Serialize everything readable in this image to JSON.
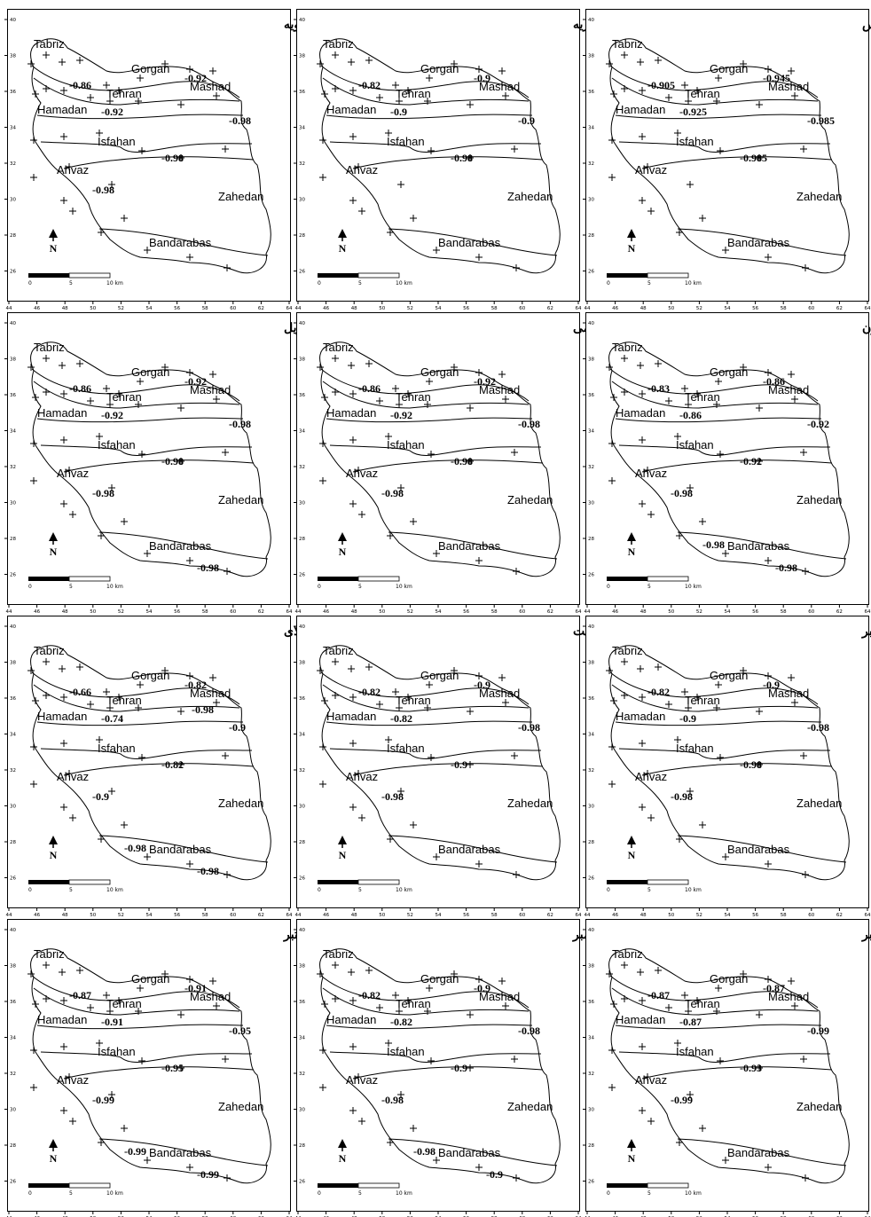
{
  "axes": {
    "x_ticks": [
      "44",
      "46",
      "48",
      "50",
      "52",
      "54",
      "56",
      "58",
      "60",
      "62",
      "64"
    ],
    "y_ticks": [
      "40",
      "38",
      "36",
      "34",
      "32",
      "30",
      "28",
      "26"
    ]
  },
  "scale_bar": {
    "labels": [
      "0",
      "5",
      "10 km"
    ]
  },
  "north_arrow": {
    "label": "N",
    "icon": "north-arrow-icon"
  },
  "cities": [
    "Tabriz",
    "Gorgan",
    "Tehran",
    "Mashad",
    "Hamadan",
    "Isfahan",
    "Ahvaz",
    "Zahedan",
    "Bandarabas"
  ],
  "panels": [
    {
      "month": "ژانویه",
      "contours": [
        "-0.86",
        "-0.92",
        "-0.92",
        "-0.98",
        "-0.98",
        "-0.98"
      ]
    },
    {
      "month": "فوریه",
      "contours": [
        "-0.82",
        "-0.9",
        "-0.9",
        "-0.98",
        "-0.9"
      ]
    },
    {
      "month": "مارس",
      "contours": [
        "-0.905",
        "-0.925",
        "-0.945",
        "-0.985",
        "-0.985"
      ]
    },
    {
      "month": "آپریل",
      "contours": [
        "-0.86",
        "-0.92",
        "-0.92",
        "-0.98",
        "-0.98",
        "-0.98",
        "-0.98"
      ]
    },
    {
      "month": "می",
      "contours": [
        "-0.86",
        "-0.92",
        "-0.92",
        "-0.98",
        "-0.98",
        "-0.98"
      ]
    },
    {
      "month": "جون",
      "contours": [
        "-0.83",
        "-0.86",
        "-0.86",
        "-0.92",
        "-0.92",
        "-0.98",
        "-0.98",
        "-0.98"
      ]
    },
    {
      "month": "جولای",
      "contours": [
        "-0.66",
        "-0.74",
        "-0.82",
        "-0.82",
        "-0.9",
        "-0.9",
        "-0.98",
        "-0.98",
        "-0.98"
      ]
    },
    {
      "month": "آگست",
      "contours": [
        "-0.82",
        "-0.82",
        "-0.9",
        "-0.9",
        "-0.98",
        "-0.98"
      ]
    },
    {
      "month": "سپتامبر",
      "contours": [
        "-0.82",
        "-0.9",
        "-0.9",
        "-0.98",
        "-0.98",
        "-0.98"
      ]
    },
    {
      "month": "اکتبر",
      "contours": [
        "-0.87",
        "-0.91",
        "-0.91",
        "-0.95",
        "-0.95",
        "-0.99",
        "-0.99",
        "-0.99"
      ]
    },
    {
      "month": "نوامبر",
      "contours": [
        "-0.82",
        "-0.82",
        "-0.9",
        "-0.9",
        "-0.98",
        "-0.98",
        "-0.9",
        "-0.98"
      ]
    },
    {
      "month": "دسامبر",
      "contours": [
        "-0.87",
        "-0.87",
        "-0.87",
        "-0.93",
        "-0.99",
        "-0.99"
      ]
    }
  ]
}
